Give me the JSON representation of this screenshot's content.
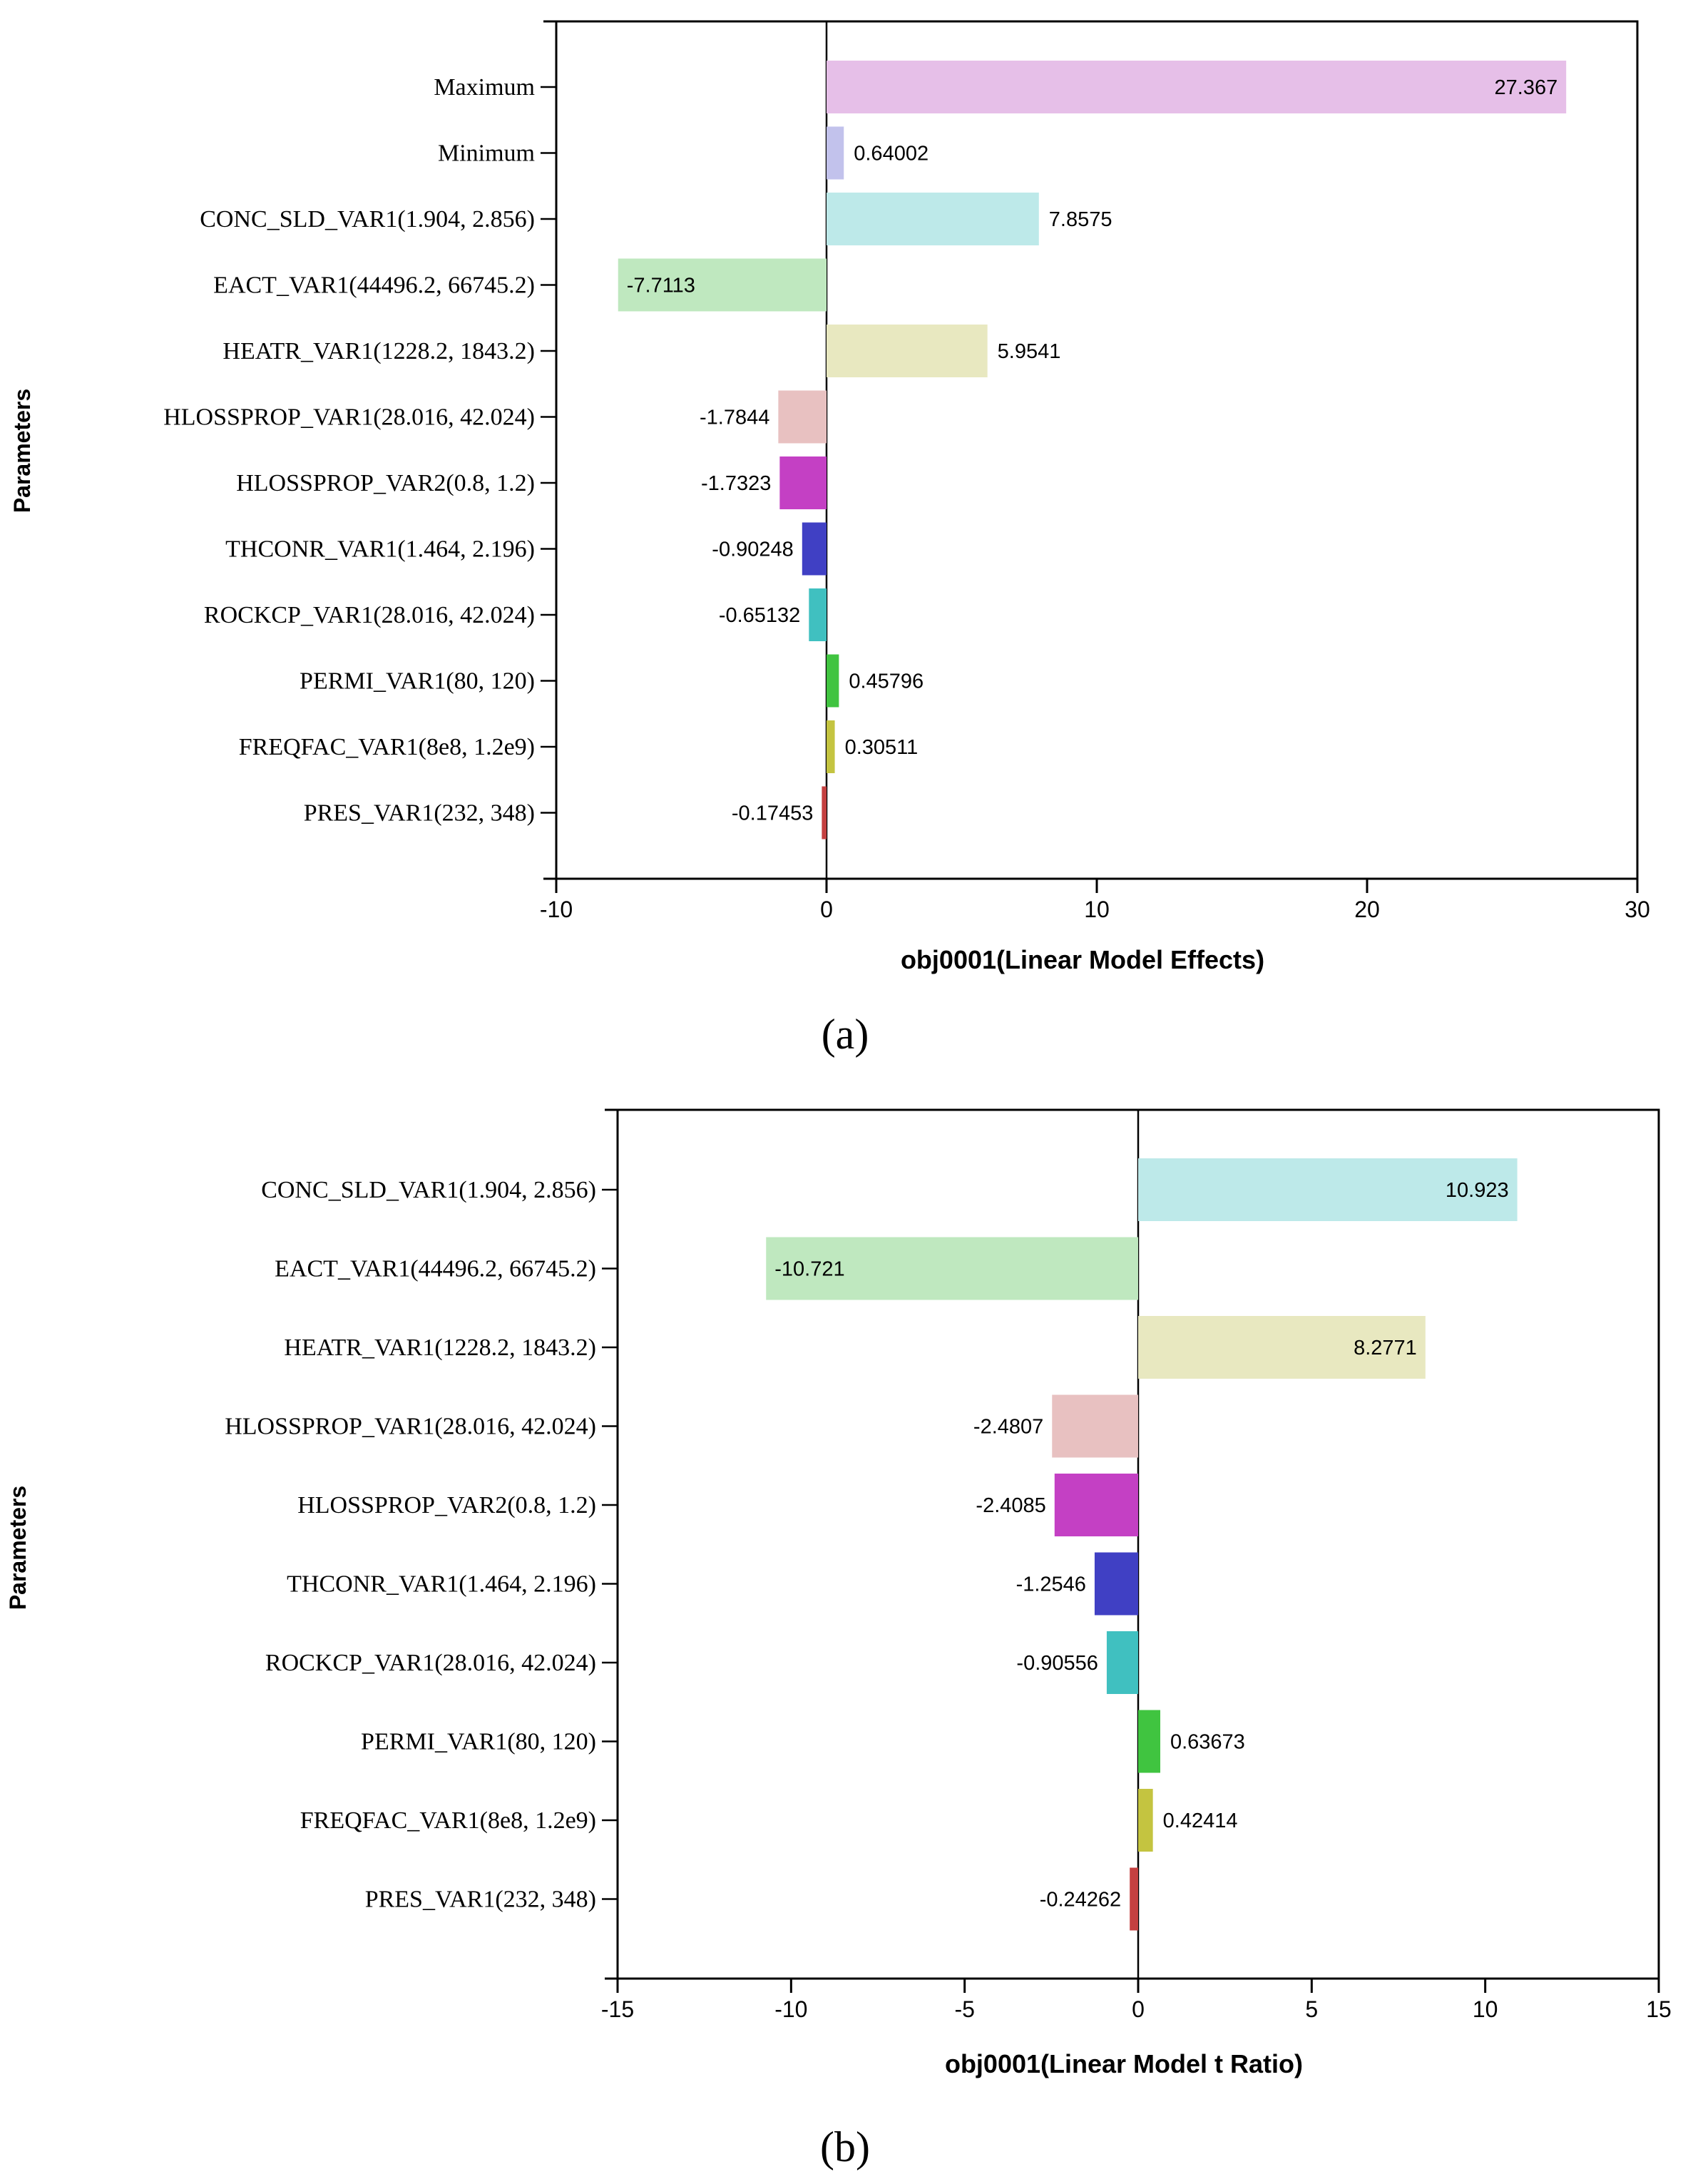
{
  "chart_data": [
    {
      "type": "bar",
      "orientation": "horizontal",
      "panel_label": "(a)",
      "xlabel": "obj0001(Linear Model Effects)",
      "ylabel": "Parameters",
      "xlim": [
        -10,
        30
      ],
      "xticks": [
        "-10",
        "0",
        "10",
        "20",
        "30"
      ],
      "categories": [
        "Maximum",
        "Minimum",
        "CONC_SLD_VAR1(1.904, 2.856)",
        "EACT_VAR1(44496.2, 66745.2)",
        "HEATR_VAR1(1228.2, 1843.2)",
        "HLOSSPROP_VAR1(28.016, 42.024)",
        "HLOSSPROP_VAR2(0.8, 1.2)",
        "THCONR_VAR1(1.464, 2.196)",
        "ROCKCP_VAR1(28.016, 42.024)",
        "PERMI_VAR1(80, 120)",
        "FREQFAC_VAR1(8e8, 1.2e9)",
        "PRES_VAR1(232, 348)"
      ],
      "values": [
        27.367,
        0.64002,
        7.8575,
        -7.7113,
        5.9541,
        -1.7844,
        -1.7323,
        -0.90248,
        -0.65132,
        0.45796,
        0.30511,
        -0.17453
      ],
      "value_labels": [
        "27.367",
        "0.64002",
        "7.8575",
        "-7.7113",
        "5.9541",
        "-1.7844",
        "-1.7323",
        "-0.90248",
        "-0.65132",
        "0.45796",
        "0.30511",
        "-0.17453"
      ],
      "colors": [
        "#e6bfe8",
        "#c2c2ec",
        "#bde9e9",
        "#bfe8bf",
        "#e8e8c0",
        "#e8c1c1",
        "#c440c4",
        "#4040c4",
        "#40c0c0",
        "#40c440",
        "#c4c440",
        "#c44040"
      ]
    },
    {
      "type": "bar",
      "orientation": "horizontal",
      "panel_label": "(b)",
      "xlabel": "obj0001(Linear Model t Ratio)",
      "ylabel": "Parameters",
      "xlim": [
        -15,
        15
      ],
      "xticks": [
        "-15",
        "-10",
        "-5",
        "0",
        "5",
        "10",
        "15"
      ],
      "categories": [
        "CONC_SLD_VAR1(1.904, 2.856)",
        "EACT_VAR1(44496.2, 66745.2)",
        "HEATR_VAR1(1228.2, 1843.2)",
        "HLOSSPROP_VAR1(28.016, 42.024)",
        "HLOSSPROP_VAR2(0.8, 1.2)",
        "THCONR_VAR1(1.464, 2.196)",
        "ROCKCP_VAR1(28.016, 42.024)",
        "PERMI_VAR1(80, 120)",
        "FREQFAC_VAR1(8e8, 1.2e9)",
        "PRES_VAR1(232, 348)"
      ],
      "values": [
        10.923,
        -10.721,
        8.2771,
        -2.4807,
        -2.4085,
        -1.2546,
        -0.90556,
        0.63673,
        0.42414,
        -0.24262
      ],
      "value_labels": [
        "10.923",
        "-10.721",
        "8.2771",
        "-2.4807",
        "-2.4085",
        "-1.2546",
        "-0.90556",
        "0.63673",
        "0.42414",
        "-0.24262"
      ],
      "colors": [
        "#bde9e9",
        "#bfe8bf",
        "#e8e8c0",
        "#e8c1c1",
        "#c440c4",
        "#4040c4",
        "#40c0c0",
        "#40c440",
        "#c4c440",
        "#c44040"
      ]
    }
  ]
}
